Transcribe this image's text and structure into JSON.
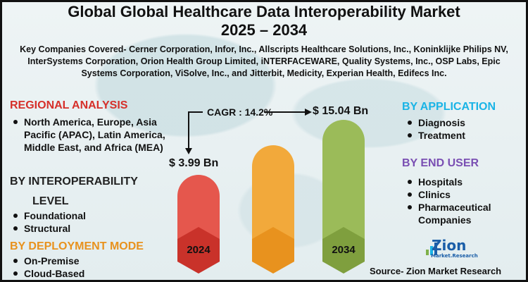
{
  "title": {
    "line1": "Global Global Healthcare Data Interoperability Market",
    "line2": "2025 – 2034"
  },
  "companies": "Key Companies Covered- Cerner Corporation, Infor, Inc., Allscripts Healthcare Solutions, Inc., Koninklijke Philips NV, InterSystems Corporation, Orion Health Group Limited, iNTERFACEWARE, Quality Systems, Inc., OSP Labs, Epic Systems Corporation, ViSolve, Inc., and Jitterbit, Medicity, Experian Health, Edifecs Inc.",
  "regional": {
    "heading": "REGIONAL ANALYSIS",
    "items": [
      "North America, Europe, Asia Pacific (APAC), Latin America, Middle East, and Africa (MEA)"
    ]
  },
  "interoperability": {
    "heading_line1": "BY INTEROPERABILITY",
    "heading_line2": "LEVEL",
    "items": [
      "Foundational",
      "Structural"
    ]
  },
  "deployment": {
    "heading": "BY DEPLOYMENT MODE",
    "items": [
      "On-Premise",
      "Cloud-Based"
    ]
  },
  "application": {
    "heading": "BY APPLICATION",
    "items": [
      "Diagnosis",
      "Treatment"
    ]
  },
  "end_user": {
    "heading": "BY END USER",
    "items": [
      "Hospitals",
      "Clinics",
      "Pharmaceutical Companies"
    ]
  },
  "market": {
    "cagr": "CAGR : 14.2%",
    "start_value": "$ 3.99 Bn",
    "end_value": "$ 15.04 Bn",
    "start_year": "2024",
    "end_year": "2034"
  },
  "colors": {
    "bar_red": "#e5574d",
    "bar_orange": "#f2a93b",
    "bar_green": "#9bbb59",
    "hex_red": "#c9322a",
    "hex_orange": "#e8921e",
    "hex_green": "#7f9f3e"
  },
  "logo": {
    "name": "Zion",
    "sub": "Market.Research"
  },
  "source": "Source- Zion Market Research"
}
